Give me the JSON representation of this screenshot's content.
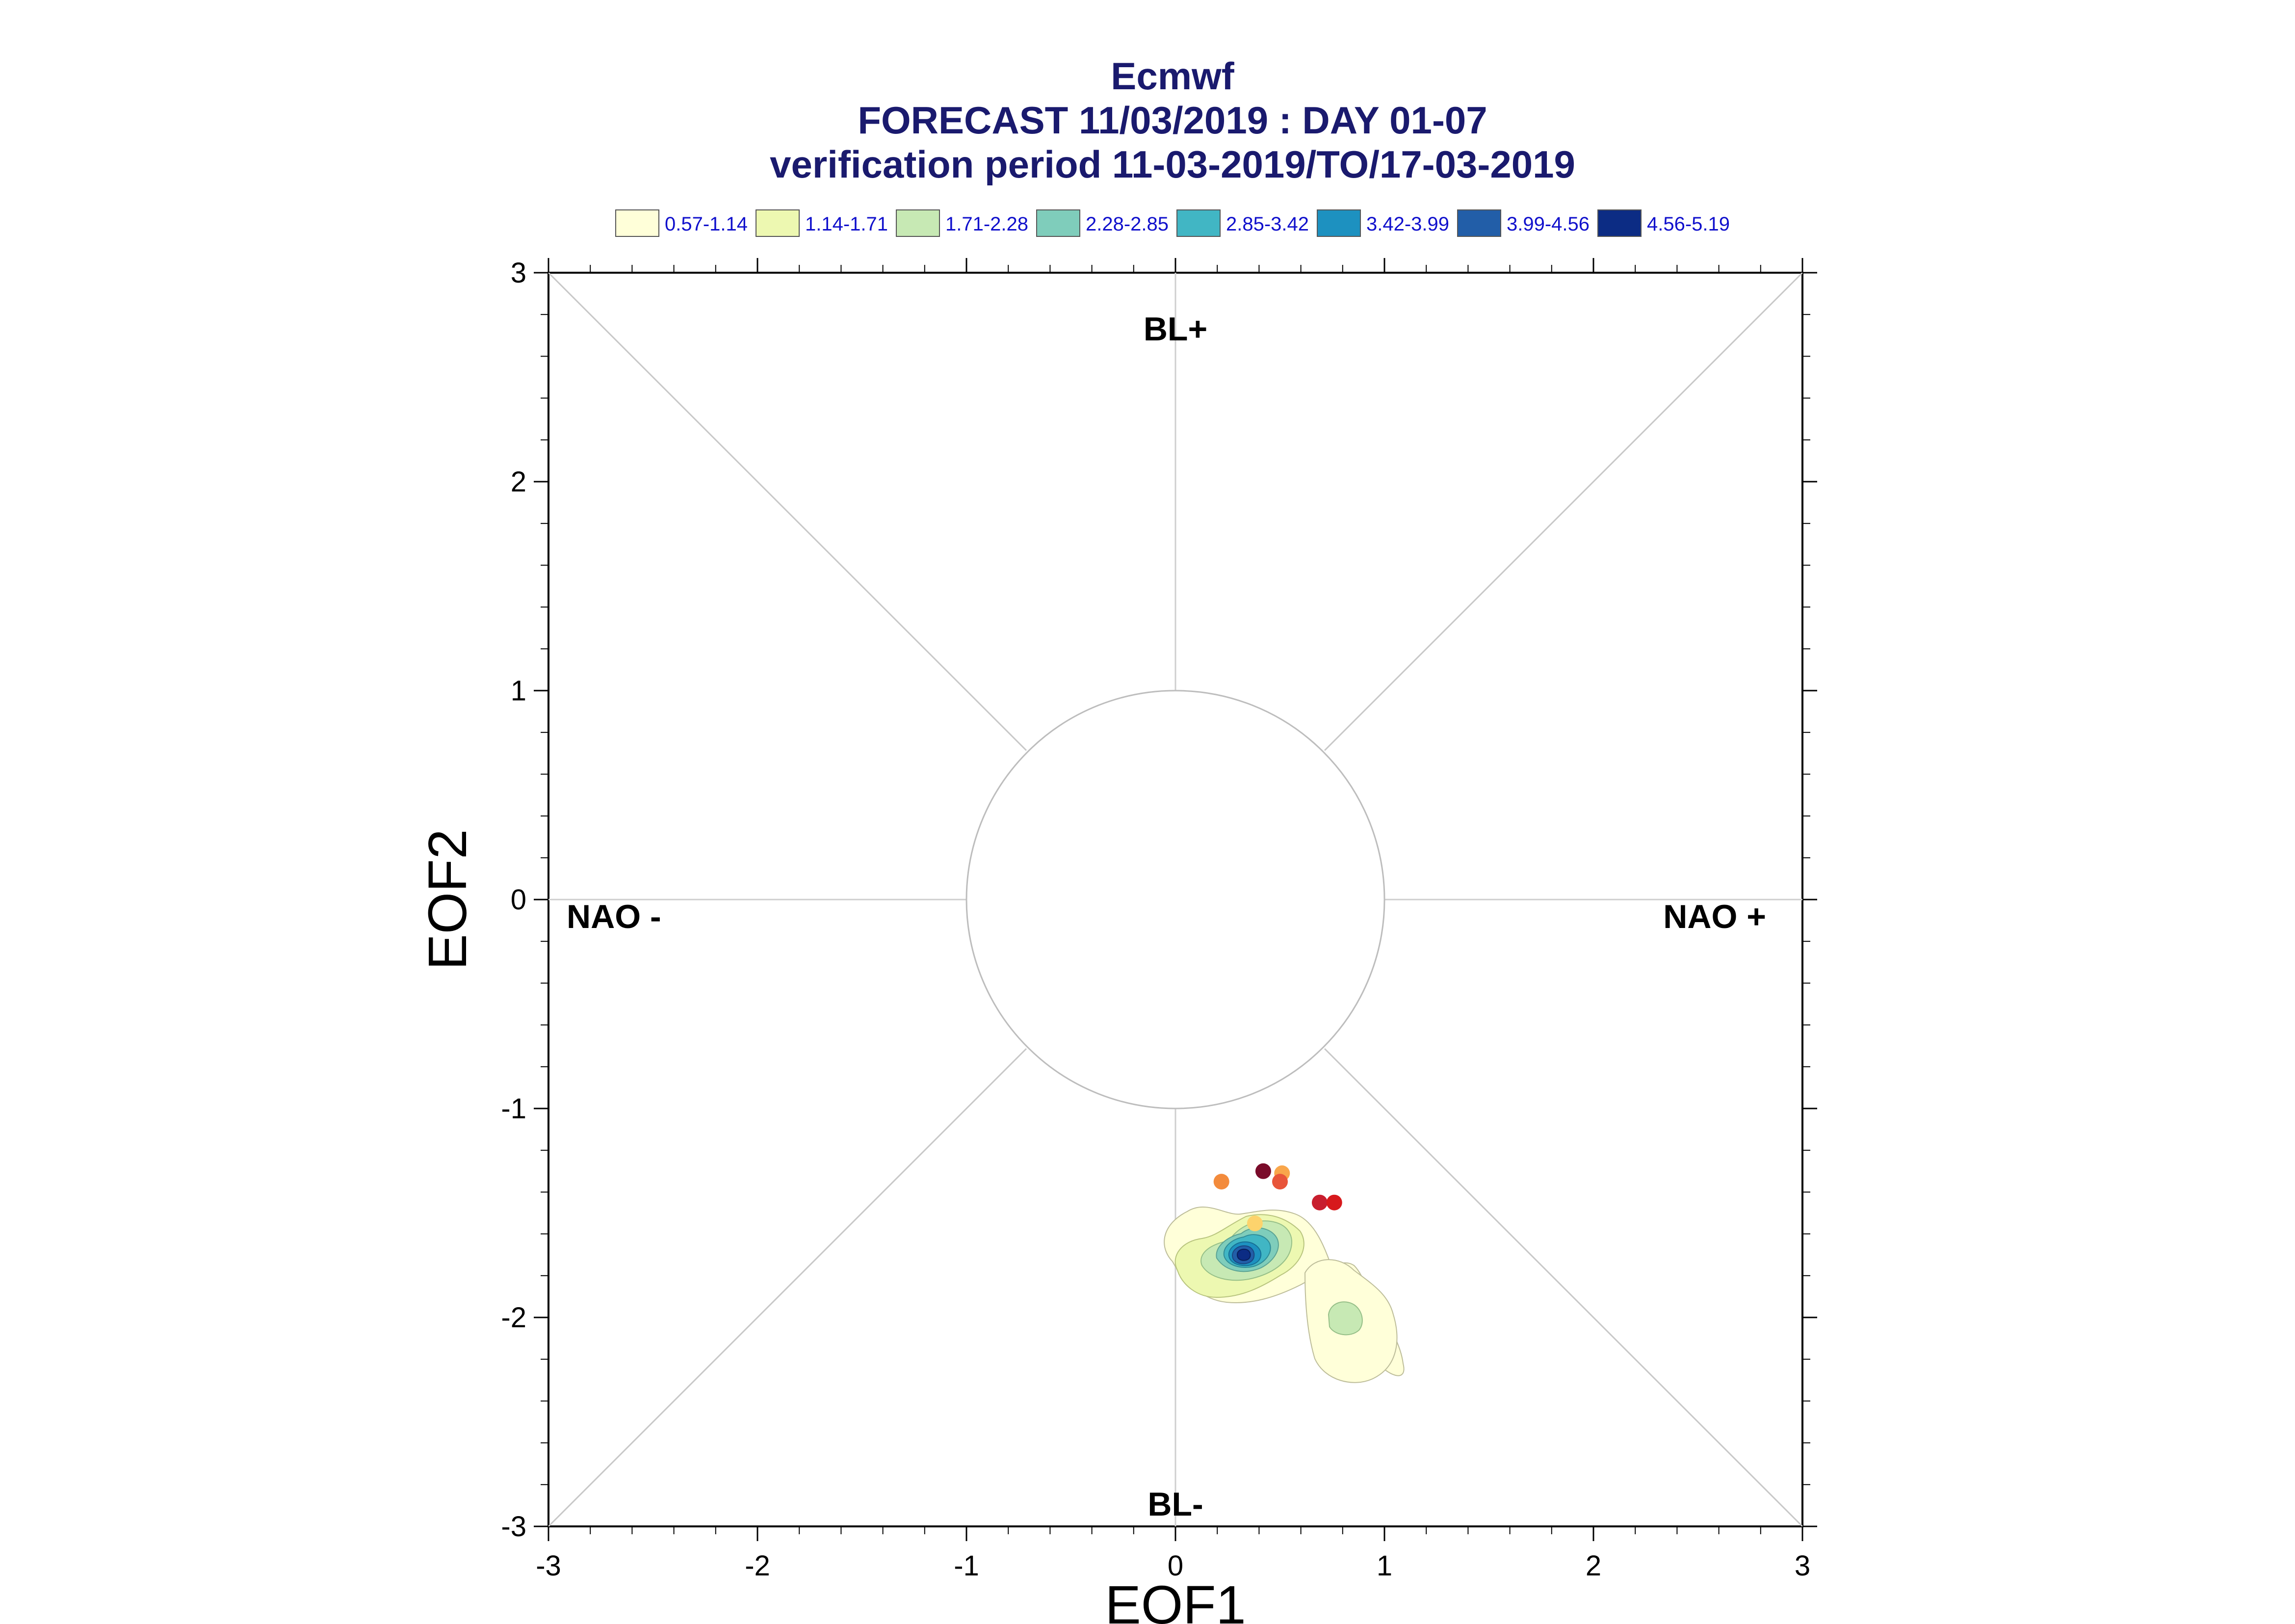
{
  "chart_data": {
    "type": "scatter",
    "title": "Ecmwf",
    "subtitle": "FORECAST 11/03/2019 : DAY 01-07",
    "subtitle2": "verification period 11-03-2019/TO/17-03-2019",
    "xlabel": "EOF1",
    "ylabel": "EOF2",
    "xlim": [
      -3,
      3
    ],
    "ylim": [
      -3,
      3
    ],
    "xticks": [
      "-3",
      "-2",
      "-1",
      "0",
      "1",
      "2",
      "3"
    ],
    "yticks": [
      "-3",
      "-2",
      "-1",
      "0",
      "1",
      "2",
      "3"
    ],
    "grid": false,
    "reference_circle_radius": 1,
    "quadrant_labels": {
      "top": "BL+",
      "bottom": "BL-",
      "left": "NAO -",
      "right": "NAO +"
    },
    "legend": {
      "placement": "top",
      "entries": [
        {
          "label": "0.57-1.14",
          "color": "#ffffd9"
        },
        {
          "label": "1.14-1.71",
          "color": "#edf8b1"
        },
        {
          "label": "1.71-2.28",
          "color": "#c7e9b4"
        },
        {
          "label": "2.28-2.85",
          "color": "#7fcdbb"
        },
        {
          "label": "2.85-3.42",
          "color": "#41b6c4"
        },
        {
          "label": "3.42-3.99",
          "color": "#1d91c0"
        },
        {
          "label": "3.99-4.56",
          "color": "#225ea8"
        },
        {
          "label": "4.56-5.19",
          "color": "#0c2c84"
        }
      ]
    },
    "points": [
      {
        "x": 0.22,
        "y": -1.35,
        "color": "#f38b3c"
      },
      {
        "x": 0.42,
        "y": -1.3,
        "color": "#7a0b2a"
      },
      {
        "x": 0.51,
        "y": -1.31,
        "color": "#f9a64b"
      },
      {
        "x": 0.5,
        "y": -1.35,
        "color": "#e8553a"
      },
      {
        "x": 0.69,
        "y": -1.45,
        "color": "#c81e2e"
      },
      {
        "x": 0.76,
        "y": -1.45,
        "color": "#d7191c"
      },
      {
        "x": 0.38,
        "y": -1.55,
        "color": "#fdd36c"
      }
    ],
    "density": {
      "levels": [
        "0.57-1.14",
        "1.14-1.71",
        "1.71-2.28",
        "2.28-2.85",
        "2.85-3.42",
        "3.42-3.99",
        "3.99-4.56",
        "4.56-5.19"
      ],
      "peak": {
        "x": 0.35,
        "y": -1.72
      },
      "secondary_peak": {
        "x": 0.82,
        "y": -2.0
      }
    }
  }
}
